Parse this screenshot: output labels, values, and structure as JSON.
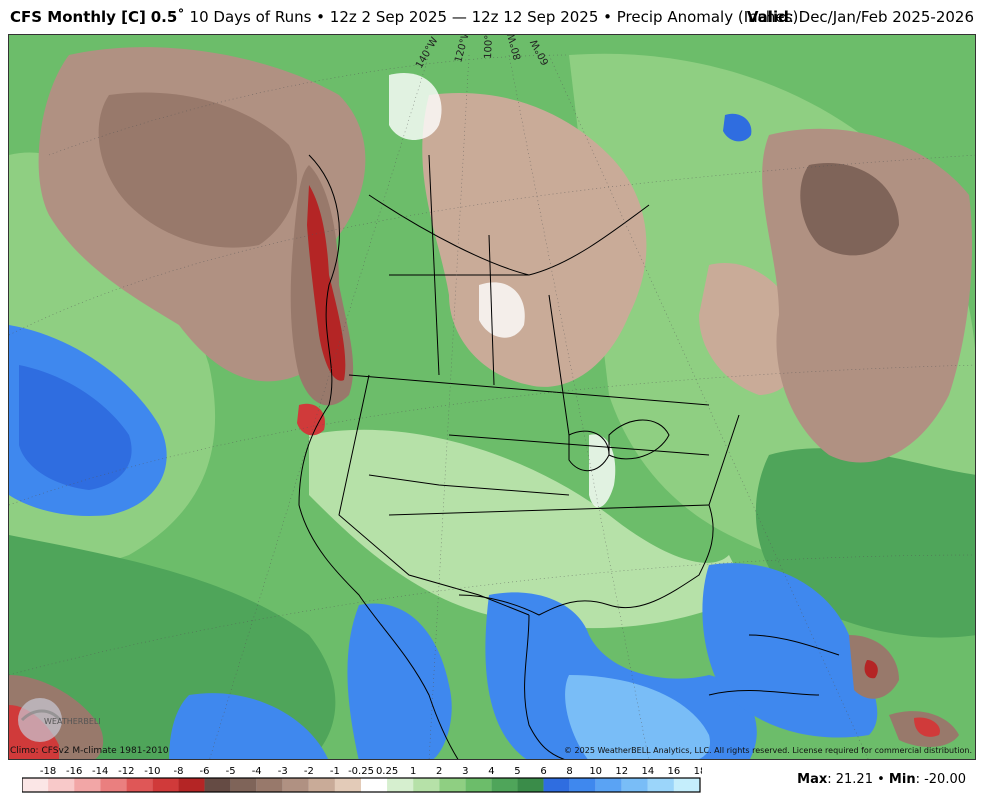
{
  "header": {
    "model": "CFS Monthly [C]",
    "resolution": "0.5˚",
    "runs": "10 Days of Runs • 12z 2 Sep 2025 — 12z 12 Sep 2025 • Precip Anomaly (Inches)",
    "valid_label": "Valid",
    "valid_period": ": Dec/Jan/Feb 2025-2026"
  },
  "map": {
    "lon_labels": [
      "140°W",
      "120°W",
      "100°W",
      "80°W",
      "60°W"
    ],
    "region": "North America"
  },
  "footer": {
    "climo": "Climo: CFSv2 M-climate 1981-2010",
    "copyright": "© 2025 WeatherBELL Analytics, LLC. All rights reserved. License required for commercial distribution.",
    "logo_text": "WEATHERBELL"
  },
  "legend": {
    "labels": [
      "-18",
      "-16",
      "-14",
      "-12",
      "-10",
      "-8",
      "-6",
      "-5",
      "-4",
      "-3",
      "-2",
      "-1",
      "-0.25",
      "0.25",
      "1",
      "2",
      "3",
      "4",
      "5",
      "6",
      "8",
      "10",
      "12",
      "14",
      "16",
      "18"
    ],
    "colors": [
      "#fbe6e6",
      "#f8c9c9",
      "#f2a6a6",
      "#ea7f7f",
      "#df5757",
      "#d03a3a",
      "#b42525",
      "#654b44",
      "#7f6459",
      "#98796b",
      "#b09182",
      "#c9ab98",
      "#e3cbb8",
      "#ffffff",
      "#d6efcf",
      "#b6e1a8",
      "#8fcf82",
      "#6cbd6a",
      "#4fa55a",
      "#3a8c49",
      "#2f6de0",
      "#3f88ee",
      "#5aa3f4",
      "#79bdf7",
      "#9bd5fa",
      "#c5eefc"
    ]
  },
  "stats": {
    "max_label": "Max",
    "max_value": ": 21.21",
    "sep": " • ",
    "min_label": "Min",
    "min_value": ": -20.00"
  }
}
